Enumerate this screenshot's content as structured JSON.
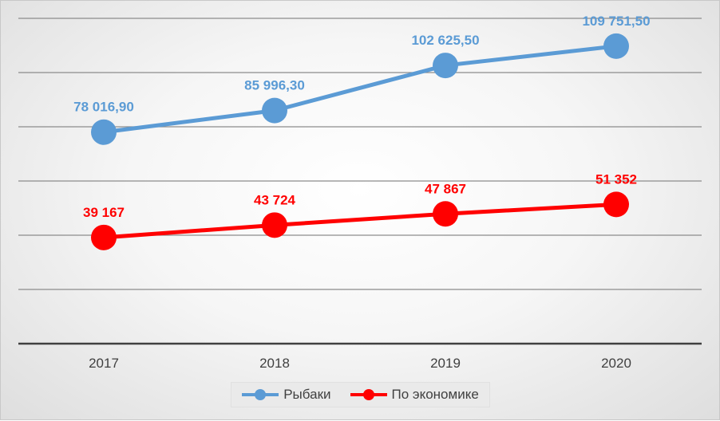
{
  "chart_data": {
    "type": "line",
    "categories": [
      "2017",
      "2018",
      "2019",
      "2020"
    ],
    "series": [
      {
        "name": "Рыбаки",
        "values": [
          78016.9,
          85996.3,
          102625.5,
          109751.5
        ],
        "labels": [
          "78 016,90",
          "85 996,30",
          "102 625,50",
          "109 751,50"
        ],
        "color": "#5B9BD5"
      },
      {
        "name": "По экономике",
        "values": [
          39167,
          43724,
          47867,
          51352
        ],
        "labels": [
          "39 167",
          "43 724",
          "47 867",
          "51 352"
        ],
        "color": "#FF0000"
      }
    ],
    "ylim": [
      0,
      120000
    ],
    "grid": true,
    "legend_position": "bottom"
  }
}
